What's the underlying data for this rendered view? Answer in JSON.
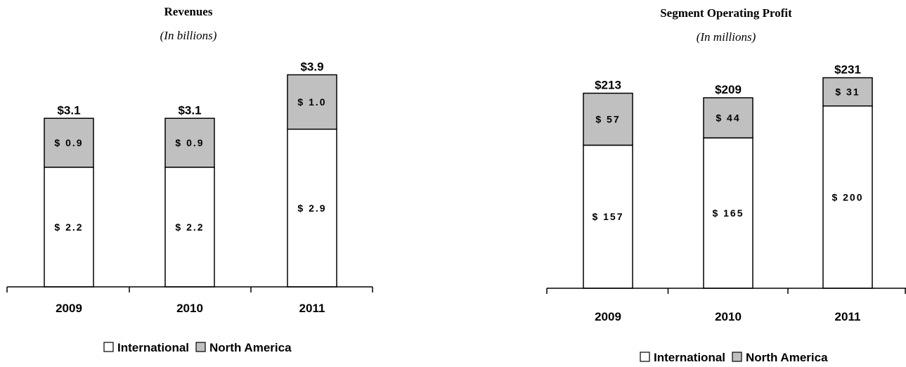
{
  "chart_data": [
    {
      "type": "bar",
      "stacked": true,
      "title": "Revenues",
      "subtitle": "(In billions)",
      "categories": [
        "2009",
        "2010",
        "2011"
      ],
      "series": [
        {
          "name": "International",
          "values": [
            2.2,
            2.2,
            2.9
          ],
          "labels": [
            "$ 2.2",
            "$ 2.2",
            "$ 2.9"
          ],
          "color": "#ffffff"
        },
        {
          "name": "North America",
          "values": [
            0.9,
            0.9,
            1.0
          ],
          "labels": [
            "$ 0.9",
            "$ 0.9",
            "$ 1.0"
          ],
          "color": "#c0c0c0"
        }
      ],
      "totals": [
        3.1,
        3.1,
        3.9
      ],
      "total_labels": [
        "$3.1",
        "$3.1",
        "$3.9"
      ],
      "ylim": [
        0,
        4.5
      ],
      "legend": [
        "International",
        "North America"
      ],
      "legend_position": "bottom",
      "grid": false
    },
    {
      "type": "bar",
      "stacked": true,
      "title": "Segment Operating Profit",
      "subtitle": "(In millions)",
      "categories": [
        "2009",
        "2010",
        "2011"
      ],
      "series": [
        {
          "name": "International",
          "values": [
            157,
            165,
            200
          ],
          "labels": [
            "$ 157",
            "$ 165",
            "$ 200"
          ],
          "color": "#ffffff"
        },
        {
          "name": "North America",
          "values": [
            57,
            44,
            31
          ],
          "labels": [
            "$ 57",
            "$ 44",
            "$ 31"
          ],
          "color": "#c0c0c0"
        }
      ],
      "totals": [
        213,
        209,
        231
      ],
      "total_labels": [
        "$213",
        "$209",
        "$231"
      ],
      "ylim": [
        0,
        270
      ],
      "legend": [
        "International",
        "North America"
      ],
      "legend_position": "bottom",
      "grid": false
    }
  ]
}
